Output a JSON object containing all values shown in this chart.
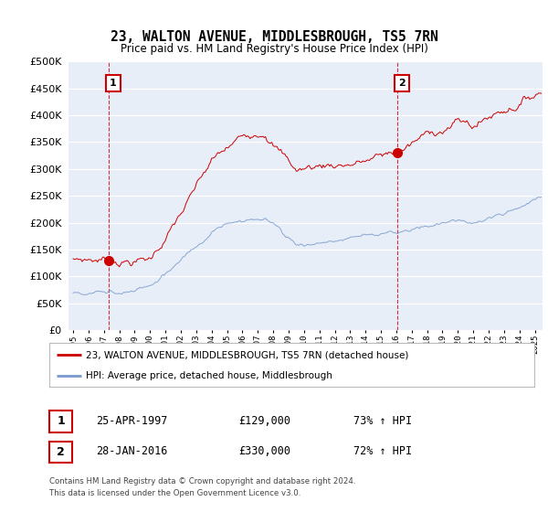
{
  "title": "23, WALTON AVENUE, MIDDLESBROUGH, TS5 7RN",
  "subtitle": "Price paid vs. HM Land Registry's House Price Index (HPI)",
  "legend_line1": "23, WALTON AVENUE, MIDDLESBROUGH, TS5 7RN (detached house)",
  "legend_line2": "HPI: Average price, detached house, Middlesbrough",
  "sale1_label": "1",
  "sale1_date": "25-APR-1997",
  "sale1_price": "£129,000",
  "sale1_hpi": "73% ↑ HPI",
  "sale1_year": 1997.31,
  "sale1_value": 129000,
  "sale2_label": "2",
  "sale2_date": "28-JAN-2016",
  "sale2_price": "£330,000",
  "sale2_hpi": "72% ↑ HPI",
  "sale2_year": 2016.07,
  "sale2_value": 330000,
  "red_line_color": "#cc0000",
  "blue_line_color": "#7799cc",
  "background_color": "#e8eef8",
  "grid_color": "#ffffff",
  "footer": "Contains HM Land Registry data © Crown copyright and database right 2024.\nThis data is licensed under the Open Government Licence v3.0.",
  "ylim": [
    0,
    500000
  ],
  "xmin": 1994.7,
  "xmax": 2025.5
}
